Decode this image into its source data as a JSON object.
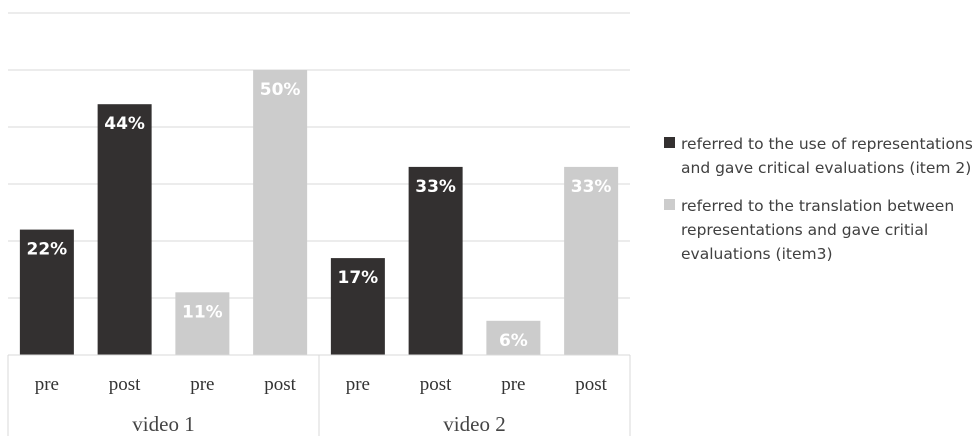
{
  "chart_data": {
    "type": "bar",
    "groups": [
      {
        "name": "video 1",
        "categories": [
          "pre",
          "post",
          "pre",
          "post"
        ]
      },
      {
        "name": "video 2",
        "categories": [
          "pre",
          "post",
          "pre",
          "post"
        ]
      }
    ],
    "series": [
      {
        "name": "referred to the use of representations and gave critical evaluations (item 2)",
        "color": "#333030"
      },
      {
        "name": "referred to the translation between representations and gave critial evaluations (item3)",
        "color": "#cccccc"
      }
    ],
    "bars": [
      {
        "group": 0,
        "category": "pre",
        "series": 0,
        "value": 22,
        "label": "22%"
      },
      {
        "group": 0,
        "category": "post",
        "series": 0,
        "value": 44,
        "label": "44%"
      },
      {
        "group": 0,
        "category": "pre",
        "series": 1,
        "value": 11,
        "label": "11%"
      },
      {
        "group": 0,
        "category": "post",
        "series": 1,
        "value": 50,
        "label": "50%"
      },
      {
        "group": 1,
        "category": "pre",
        "series": 0,
        "value": 17,
        "label": "17%"
      },
      {
        "group": 1,
        "category": "post",
        "series": 0,
        "value": 33,
        "label": "33%"
      },
      {
        "group": 1,
        "category": "pre",
        "series": 1,
        "value": 6,
        "label": "6%"
      },
      {
        "group": 1,
        "category": "post",
        "series": 1,
        "value": 33,
        "label": "33%"
      }
    ],
    "ylim": [
      0,
      60
    ],
    "grid": true,
    "legend_position": "right"
  }
}
